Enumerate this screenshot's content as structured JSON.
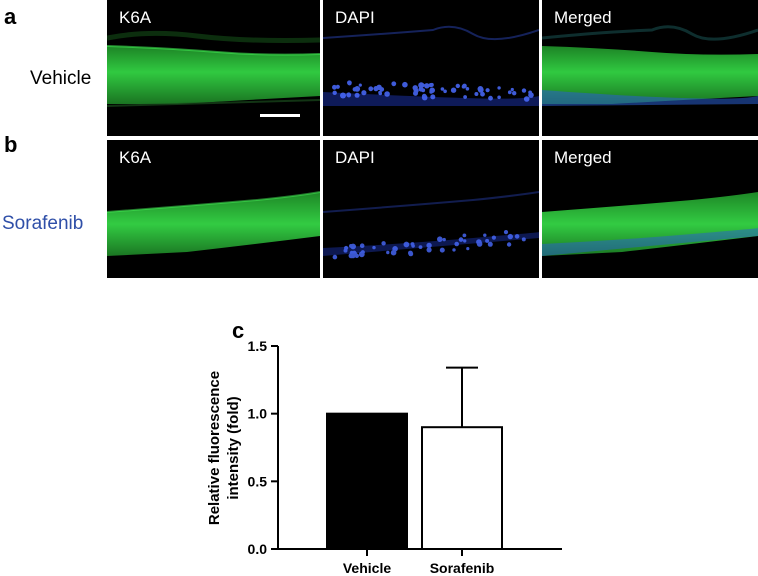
{
  "figure": {
    "panel_a": {
      "letter": "a",
      "row_label": "Vehicle",
      "row_label_color": "#000000"
    },
    "panel_b": {
      "letter": "b",
      "row_label": "Sorafenib",
      "row_label_color": "#2f4fa8"
    },
    "panel_c": {
      "letter": "c"
    },
    "channels": [
      {
        "label": "K6A",
        "color": "#2bd43a"
      },
      {
        "label": "DAPI",
        "color": "#2a4fe0"
      },
      {
        "label": "Merged",
        "color": "#2bd43a"
      }
    ]
  },
  "chart_data": {
    "type": "bar",
    "categories": [
      "Vehicle",
      "Sorafenib"
    ],
    "values": [
      1.0,
      0.9
    ],
    "error_upper": [
      0.0,
      0.44
    ],
    "bar_fill": [
      "#000000",
      "#ffffff"
    ],
    "title": "",
    "xlabel": "",
    "ylabel": "Relative fluorescence intensity (fold)",
    "ylabel_lines": [
      "Relative fluorescence",
      "intensity (fold)"
    ],
    "ylim": [
      0.0,
      1.5
    ],
    "yticks": [
      0.0,
      0.5,
      1.0,
      1.5
    ],
    "ytick_labels": [
      "0.0",
      "0.5",
      "1.0",
      "1.5"
    ],
    "grid": false,
    "legend": "none"
  }
}
